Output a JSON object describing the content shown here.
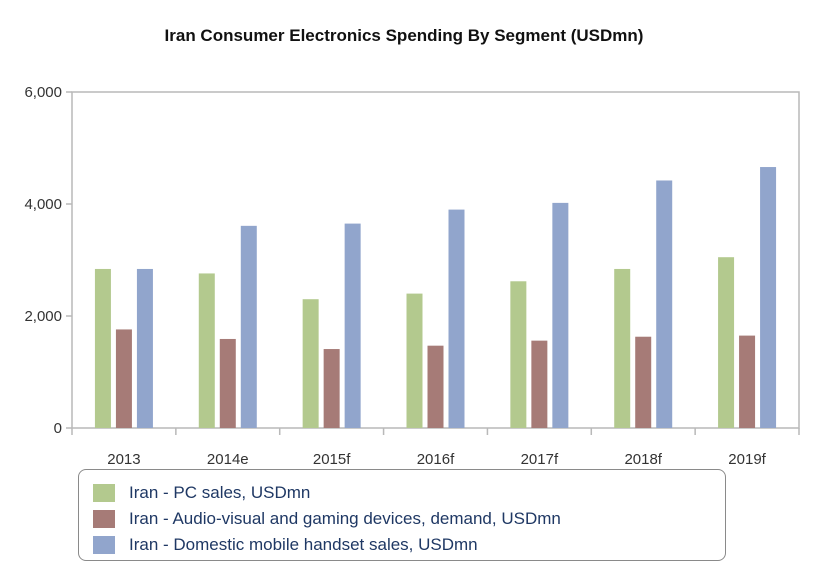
{
  "chart_data": {
    "type": "bar",
    "title": "Iran Consumer Electronics Spending By Segment (USDmn)",
    "xlabel": "",
    "ylabel": "",
    "ylim": [
      0,
      6000
    ],
    "yticks": [
      0,
      2000,
      4000,
      6000
    ],
    "ytick_labels": [
      "0",
      "2,000",
      "4,000",
      "6,000"
    ],
    "categories": [
      "2013",
      "2014e",
      "2015f",
      "2016f",
      "2017f",
      "2018f",
      "2019f"
    ],
    "series": [
      {
        "name": "Iran - PC sales, USDmn",
        "color": "#b3c98e",
        "values": [
          2840,
          2760,
          2300,
          2400,
          2620,
          2840,
          3050
        ]
      },
      {
        "name": "Iran - Audio-visual and gaming devices, demand, USDmn",
        "color": "#a67b77",
        "values": [
          1760,
          1590,
          1410,
          1470,
          1560,
          1630,
          1650
        ]
      },
      {
        "name": "Iran - Domestic mobile handset sales, USDmn",
        "color": "#91a5cc",
        "values": [
          2840,
          3610,
          3650,
          3900,
          4020,
          4420,
          4660
        ]
      }
    ],
    "grid": false,
    "legend_position": "bottom"
  }
}
